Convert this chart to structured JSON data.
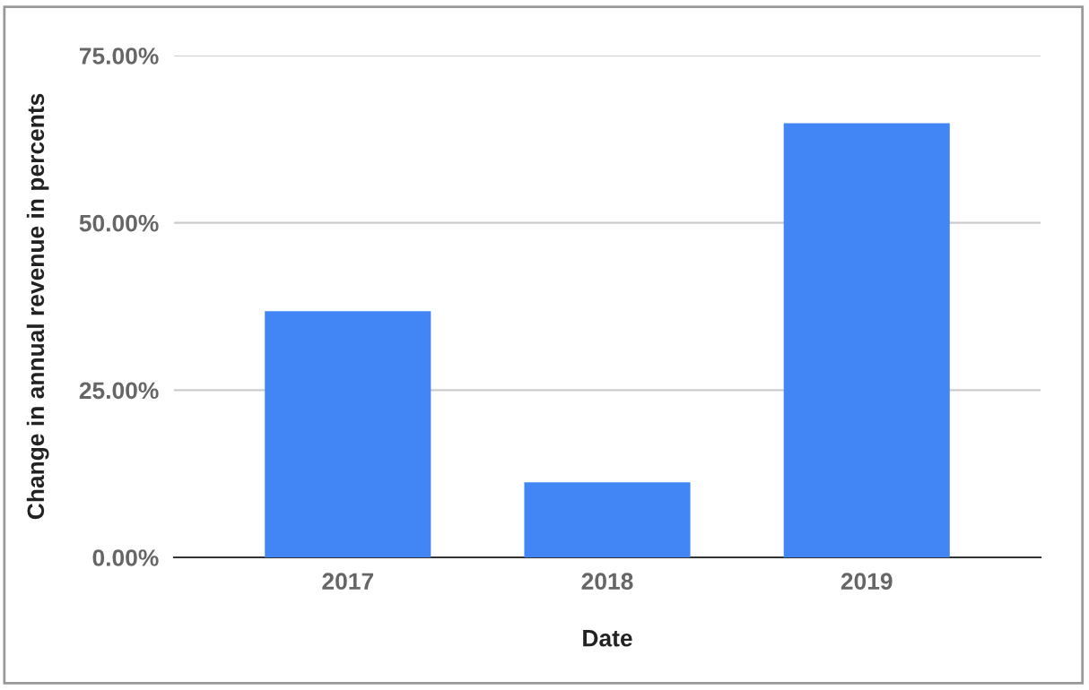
{
  "chart_data": {
    "type": "bar",
    "xlabel": "Date",
    "ylabel": "Change in annual revenue in percents",
    "categories": [
      "2017",
      "2018",
      "2019"
    ],
    "values": [
      36.8,
      11.2,
      64.9
    ],
    "color": "#4285f4",
    "ylim": [
      0,
      75
    ],
    "yticks": [
      {
        "value": 0,
        "label": "0.00%"
      },
      {
        "value": 25,
        "label": "25.00%"
      },
      {
        "value": 50,
        "label": "50.00%"
      },
      {
        "value": 75,
        "label": "75.00%"
      }
    ],
    "grid": "y"
  }
}
